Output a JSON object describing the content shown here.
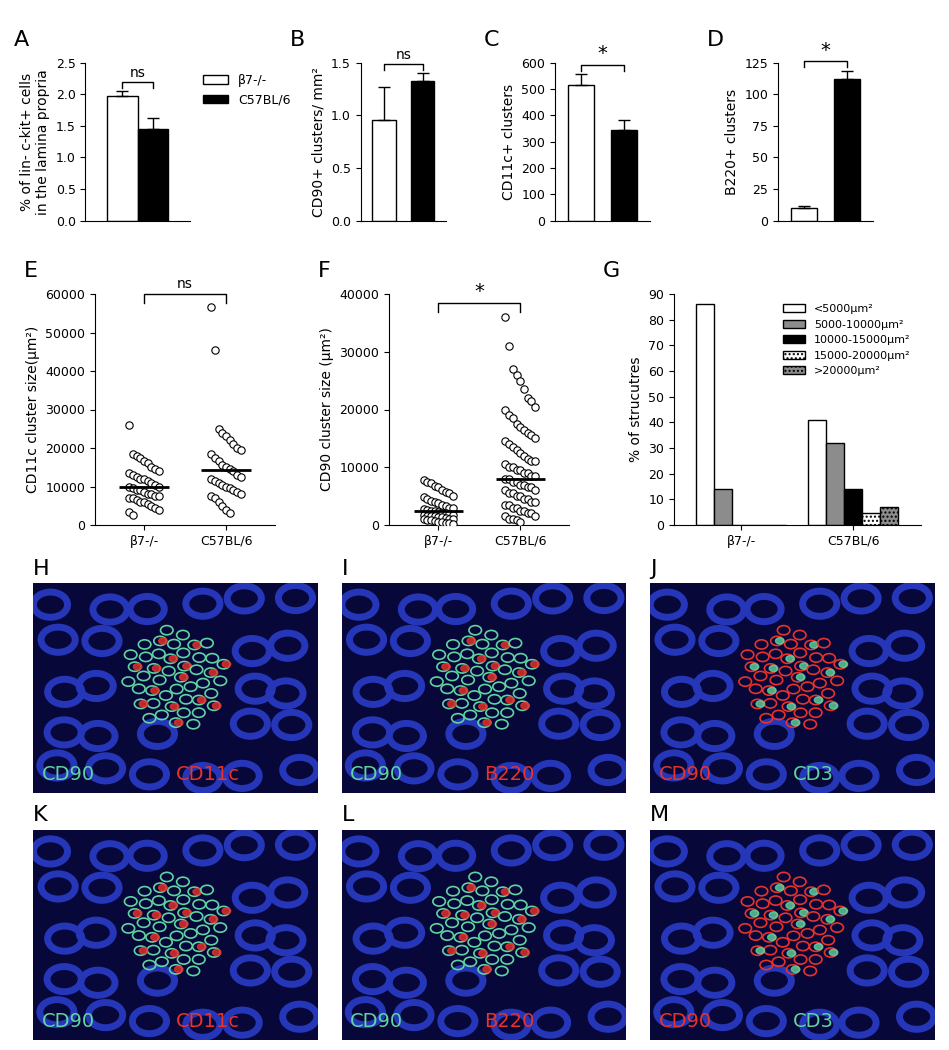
{
  "chart_data": [
    {
      "panel": "A",
      "type": "bar",
      "ylabel": "% of lin- c-kit+ cells\nin the lamina propria",
      "categories": [
        null
      ],
      "series": [
        {
          "name": "β7-/-",
          "color": "#ffffff",
          "values": [
            1.97
          ],
          "errors": [
            0.08
          ]
        },
        {
          "name": "C57BL/6",
          "color": "#000000",
          "values": [
            1.45
          ],
          "errors": [
            0.18
          ]
        }
      ],
      "ylim": [
        0,
        2.5
      ],
      "yticks": [
        {
          "value": 0,
          "label": "0.0"
        },
        0.5,
        {
          "value": 1,
          "label": "1.0"
        },
        1.5,
        {
          "value": 2,
          "label": "2.0"
        },
        2.5
      ],
      "annotation": "ns",
      "legend": "upper left",
      "tick_labels": "y",
      "grid": false
    },
    {
      "panel": "B",
      "type": "bar",
      "ylabel": "CD90+ clusters/ mm²",
      "categories": [
        null,
        null
      ],
      "colors": [
        "#ffffff",
        "#000000"
      ],
      "values": [
        0.96,
        1.33
      ],
      "errors": [
        0.31,
        0.07
      ],
      "ylim": [
        0,
        1.5
      ],
      "yticks": [
        {
          "value": 0,
          "label": "0.0"
        },
        0.5,
        {
          "value": 1,
          "label": "1.0"
        },
        1.5
      ],
      "annotation": "ns",
      "tick_labels": "y",
      "grid": false
    },
    {
      "panel": "C",
      "type": "bar",
      "ylabel": "CD11c+ clusters",
      "categories": [
        null,
        null
      ],
      "colors": [
        "#ffffff",
        "#000000"
      ],
      "values": [
        518,
        343
      ],
      "errors": [
        40,
        38
      ],
      "ylim": [
        0,
        600
      ],
      "yticks": [
        0,
        100,
        200,
        300,
        400,
        500,
        600
      ],
      "annotation": "*",
      "tick_labels": "y",
      "grid": false
    },
    {
      "panel": "D",
      "type": "bar",
      "ylabel": "B220+ clusters",
      "categories": [
        null,
        null
      ],
      "colors": [
        "#ffffff",
        "#000000"
      ],
      "values": [
        10,
        112
      ],
      "errors": [
        1.5,
        7
      ],
      "ylim": [
        0,
        125
      ],
      "yticks": [
        0,
        25,
        50,
        75,
        100,
        125
      ],
      "annotation": "*",
      "tick_labels": "y",
      "grid": false
    },
    {
      "panel": "E",
      "type": "scatter",
      "ylabel": "CD11c cluster size(μm²)",
      "categories": [
        "β7-/-",
        "C57BL/6"
      ],
      "values": [
        [
          26000,
          18500,
          18000,
          17500,
          16500,
          16000,
          15000,
          14500,
          14000,
          13500,
          13000,
          12500,
          12000,
          12000,
          11500,
          11000,
          10500,
          10000,
          10000,
          9500,
          9000,
          9000,
          8500,
          8000,
          8000,
          7500,
          7500,
          7000,
          7000,
          6500,
          6000,
          6000,
          5500,
          5000,
          4500,
          4000,
          3500,
          2500
        ],
        [
          56500,
          45500,
          25000,
          24000,
          23000,
          22000,
          21000,
          20000,
          19500,
          18500,
          17500,
          16500,
          15500,
          15000,
          14500,
          14000,
          13000,
          12500,
          12000,
          11500,
          11000,
          10500,
          10000,
          9500,
          9000,
          8500,
          8000,
          7500,
          7000,
          6000,
          5000,
          4000,
          3000
        ]
      ],
      "means": [
        10000,
        14300
      ],
      "ylim": [
        0,
        60000
      ],
      "yticks": [
        0,
        10000,
        20000,
        30000,
        40000,
        50000,
        60000
      ],
      "annotation": "ns",
      "marker": "circle",
      "grid": false
    },
    {
      "panel": "F",
      "type": "scatter",
      "ylabel": "CD90 cluster size (μm²)",
      "categories": [
        "β7-/-",
        "C57BL/6"
      ],
      "values": [
        [
          7800,
          7500,
          7200,
          6800,
          6500,
          6000,
          5800,
          5500,
          5000,
          4800,
          4500,
          4200,
          4000,
          3800,
          3500,
          3300,
          3000,
          3000,
          2800,
          2600,
          2500,
          2400,
          2200,
          2000,
          2000,
          1900,
          1800,
          1700,
          1600,
          1500,
          1500,
          1400,
          1300,
          1200,
          1100,
          1000,
          1000,
          900,
          800,
          700,
          600,
          500,
          400,
          300,
          200
        ],
        [
          36000,
          31000,
          27000,
          26000,
          25000,
          23500,
          22000,
          21500,
          20500,
          20000,
          19000,
          18500,
          17500,
          17000,
          16500,
          16000,
          15500,
          15000,
          14500,
          14000,
          13500,
          13000,
          12500,
          12000,
          11500,
          11000,
          11000,
          10500,
          10000,
          10000,
          9500,
          9500,
          9000,
          9000,
          8500,
          8500,
          8000,
          8000,
          7500,
          7500,
          7000,
          7000,
          6500,
          6500,
          6000,
          6000,
          5500,
          5500,
          5000,
          5000,
          4500,
          4500,
          4000,
          4000,
          3500,
          3500,
          3000,
          3000,
          2500,
          2500,
          2000,
          2000,
          1500,
          1500,
          1000,
          1000,
          800,
          500
        ]
      ],
      "means": [
        2500,
        8000
      ],
      "ylim": [
        0,
        40000
      ],
      "yticks": [
        0,
        10000,
        20000,
        30000,
        40000
      ],
      "annotation": "*",
      "marker": "circle",
      "grid": false
    },
    {
      "panel": "G",
      "type": "bar",
      "ylabel": "% of strucutres",
      "categories": [
        "β7-/-",
        "C57BL/6"
      ],
      "series": [
        {
          "name": "<5000μm²",
          "color": "#ffffff",
          "values": [
            86,
            41
          ]
        },
        {
          "name": "5000-10000μm²",
          "color": "#8c8c8c",
          "values": [
            14,
            32
          ]
        },
        {
          "name": "10000-15000μm²",
          "color": "#000000",
          "values": [
            0,
            14
          ]
        },
        {
          "name": "15000-20000μm²",
          "color": "#ffffff",
          "values": [
            0,
            4.5
          ],
          "line_style": "dotted"
        },
        {
          "name": ">20000μm²",
          "color": "#8c8c8c",
          "values": [
            0,
            7
          ],
          "line_style": "dotted"
        }
      ],
      "ylim": [
        0,
        90
      ],
      "yticks": [
        0,
        10,
        20,
        30,
        40,
        50,
        60,
        70,
        80,
        90
      ],
      "legend": "upper right",
      "grid": false
    }
  ],
  "images": [
    {
      "panel": "H",
      "labels": [
        {
          "text": "CD90",
          "color": "#5fd4a0"
        },
        {
          "text": "CD11c",
          "color": "#e8322a"
        }
      ]
    },
    {
      "panel": "I",
      "labels": [
        {
          "text": "CD90",
          "color": "#5fd4a0"
        },
        {
          "text": "B220",
          "color": "#e8322a"
        }
      ]
    },
    {
      "panel": "J",
      "labels": [
        {
          "text": "CD90",
          "color": "#e8322a"
        },
        {
          "text": "CD3",
          "color": "#5fd4a0"
        }
      ]
    },
    {
      "panel": "K",
      "labels": [
        {
          "text": "CD90",
          "color": "#5fd4a0"
        },
        {
          "text": "CD11c",
          "color": "#e8322a"
        }
      ]
    },
    {
      "panel": "L",
      "labels": [
        {
          "text": "CD90",
          "color": "#5fd4a0"
        },
        {
          "text": "B220",
          "color": "#e8322a"
        }
      ]
    },
    {
      "panel": "M",
      "labels": [
        {
          "text": "CD90",
          "color": "#e8322a"
        },
        {
          "text": "CD3",
          "color": "#5fd4a0"
        }
      ]
    }
  ]
}
